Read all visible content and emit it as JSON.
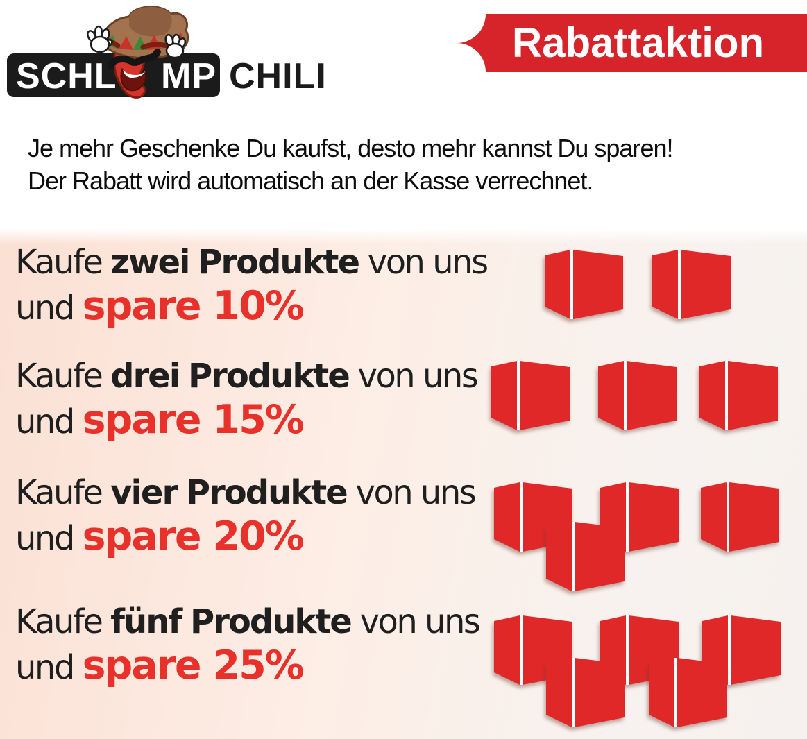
{
  "brand": {
    "logo_text_part1": "SCHL",
    "logo_text_part2": "MP",
    "logo_text_part3": "CHILI",
    "mascot_icon": "chili-pepper-with-sombrero",
    "logo_bg": "#1b1b1b"
  },
  "banner": {
    "label": "Rabattaktion",
    "bg": "#d7232a",
    "text_color": "#ffffff"
  },
  "intro": {
    "line1": "Je mehr Geschenke Du kaufst, desto mehr kannst Du sparen!",
    "line2": "Der Rabatt wird automatisch an der Kasse verrechnet."
  },
  "offers": [
    {
      "prefix": "Kaufe",
      "quantity": "zwei",
      "product": "Produkte",
      "suffix": "von uns",
      "conj": "und",
      "action": "spare",
      "discount": "10%",
      "boxes": 2
    },
    {
      "prefix": "Kaufe",
      "quantity": "drei",
      "product": "Produkte",
      "suffix": "von uns",
      "conj": "und",
      "action": "spare",
      "discount": "15%",
      "boxes": 3
    },
    {
      "prefix": "Kaufe",
      "quantity": "vier",
      "product": "Produkte",
      "suffix": "von uns",
      "conj": "und",
      "action": "spare",
      "discount": "20%",
      "boxes": 4
    },
    {
      "prefix": "Kaufe",
      "quantity": "fünf",
      "product": "Produkte",
      "suffix": "von uns",
      "conj": "und",
      "action": "spare",
      "discount": "25%",
      "boxes": 5
    }
  ],
  "colors": {
    "accent_red": "#d7232a",
    "box_red": "#e12829",
    "discount_red": "#e8312b",
    "panel_left": "#fbe0d4",
    "panel_right": "#f7f2ef"
  }
}
